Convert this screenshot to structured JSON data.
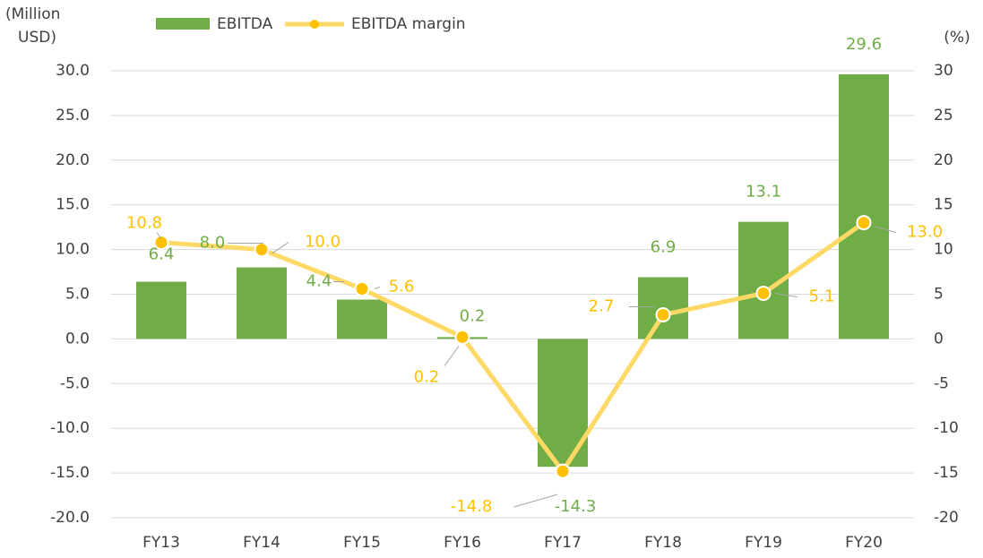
{
  "chart_data": {
    "type": "bar_line",
    "y_label": [
      "(Million",
      "USD)"
    ],
    "y2_label": "(%)",
    "categories": [
      "FY13",
      "FY14",
      "FY15",
      "FY16",
      "FY17",
      "FY18",
      "FY19",
      "FY20"
    ],
    "series": [
      {
        "name": "EBITDA",
        "type": "bar",
        "color": "#70ad47",
        "values": [
          6.4,
          8.0,
          4.4,
          0.2,
          -14.3,
          6.9,
          13.1,
          29.6
        ],
        "value_labels": [
          "6.4",
          "8.0",
          "4.4",
          "0.2",
          "-14.3",
          "6.9",
          "13.1",
          "29.6"
        ]
      },
      {
        "name": "EBITDA margin",
        "type": "line",
        "axis": "y2",
        "color": "#ffd966",
        "marker_color": "#ffc000",
        "values": [
          10.8,
          10.0,
          5.6,
          0.2,
          -14.8,
          2.7,
          5.1,
          13.0
        ],
        "value_labels": [
          "10.8",
          "10.0",
          "5.6",
          "0.2",
          "-14.8",
          "2.7",
          "5.1",
          "13.0"
        ]
      }
    ],
    "ylim": [
      -20,
      30
    ],
    "yticks": [
      {
        "value": -20,
        "label": "-20.0"
      },
      {
        "value": -15,
        "label": "-15.0"
      },
      {
        "value": -10,
        "label": "-10.0"
      },
      {
        "value": -5,
        "label": "-5.0"
      },
      {
        "value": 0,
        "label": "0.0"
      },
      {
        "value": 5,
        "label": "5.0"
      },
      {
        "value": 10,
        "label": "10.0"
      },
      {
        "value": 15,
        "label": "15.0"
      },
      {
        "value": 20,
        "label": "20.0"
      },
      {
        "value": 25,
        "label": "25.0"
      },
      {
        "value": 30,
        "label": "30.0"
      }
    ],
    "y2lim": [
      -20,
      30
    ],
    "y2ticks": [
      -20,
      -15,
      -10,
      -5,
      0,
      5,
      10,
      15,
      20,
      25,
      30
    ],
    "grid": true,
    "legend": "top"
  }
}
